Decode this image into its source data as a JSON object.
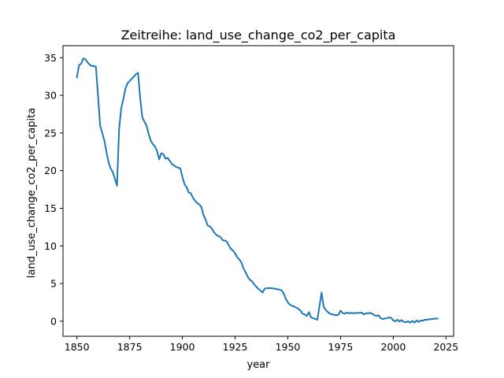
{
  "chart_data": {
    "type": "line",
    "title": "Zeitreihe: land_use_change_co2_per_capita",
    "xlabel": "year",
    "ylabel": "land_use_change_co2_per_capita",
    "xlim": [
      1843.4,
      2028.6
    ],
    "ylim": [
      -2.0,
      36.6
    ],
    "grid": false,
    "legend": "none",
    "line_color": "#1f77b4",
    "x_ticks": [
      1850,
      1875,
      1900,
      1925,
      1950,
      1975,
      2000,
      2025
    ],
    "y_ticks": [
      0,
      5,
      10,
      15,
      20,
      25,
      30,
      35
    ],
    "series": [
      {
        "x": [
          1850,
          1851,
          1852,
          1853,
          1854,
          1855,
          1856,
          1857,
          1858,
          1859,
          1860,
          1861,
          1862,
          1863,
          1864,
          1865,
          1866,
          1867,
          1868,
          1869,
          1870,
          1871,
          1872,
          1873,
          1874,
          1875,
          1876,
          1877,
          1878,
          1879,
          1880,
          1881,
          1882,
          1883,
          1884,
          1885,
          1886,
          1887,
          1888,
          1889,
          1890,
          1891,
          1892,
          1893,
          1894,
          1895,
          1896,
          1897,
          1898,
          1899,
          1900,
          1901,
          1902,
          1903,
          1904,
          1905,
          1906,
          1907,
          1908,
          1909,
          1910,
          1911,
          1912,
          1913,
          1914,
          1915,
          1916,
          1917,
          1918,
          1919,
          1920,
          1921,
          1922,
          1923,
          1924,
          1925,
          1926,
          1927,
          1928,
          1929,
          1930,
          1931,
          1932,
          1933,
          1934,
          1935,
          1936,
          1937,
          1938,
          1939,
          1940,
          1941,
          1942,
          1943,
          1944,
          1945,
          1946,
          1947,
          1948,
          1949,
          1950,
          1951,
          1952,
          1953,
          1954,
          1955,
          1956,
          1957,
          1958,
          1959,
          1960,
          1961,
          1962,
          1963,
          1964,
          1965,
          1966,
          1967,
          1968,
          1969,
          1970,
          1971,
          1972,
          1973,
          1974,
          1975,
          1976,
          1977,
          1978,
          1979,
          1980,
          1981,
          1982,
          1983,
          1984,
          1985,
          1986,
          1987,
          1988,
          1989,
          1990,
          1991,
          1992,
          1993,
          1994,
          1995,
          1996,
          1997,
          1998,
          1999,
          2000,
          2001,
          2002,
          2003,
          2004,
          2005,
          2006,
          2007,
          2008,
          2009,
          2010,
          2011,
          2012,
          2013,
          2014,
          2015,
          2016,
          2017,
          2018,
          2019,
          2020,
          2021
        ],
        "values": [
          32.4,
          34.0,
          34.2,
          34.9,
          34.8,
          34.4,
          34.1,
          33.9,
          33.9,
          33.8,
          30.0,
          26.0,
          25.0,
          24.0,
          22.5,
          21.1,
          20.3,
          19.8,
          18.9,
          18.0,
          25.5,
          28.3,
          29.5,
          30.9,
          31.6,
          31.9,
          32.2,
          32.5,
          32.8,
          33.0,
          29.6,
          27.1,
          26.5,
          26.0,
          24.9,
          24.0,
          23.5,
          23.2,
          22.6,
          21.5,
          22.3,
          22.2,
          21.6,
          21.7,
          21.3,
          20.9,
          20.7,
          20.5,
          20.4,
          20.3,
          19.2,
          18.2,
          17.8,
          17.1,
          17.0,
          16.4,
          16.0,
          15.7,
          15.5,
          15.2,
          14.1,
          13.5,
          12.7,
          12.6,
          12.3,
          11.8,
          11.5,
          11.3,
          11.2,
          10.8,
          10.7,
          10.6,
          10.1,
          9.6,
          9.4,
          9.0,
          8.5,
          8.2,
          7.8,
          7.0,
          6.5,
          5.9,
          5.5,
          5.3,
          4.9,
          4.6,
          4.3,
          4.1,
          3.8,
          4.3,
          4.4,
          4.4,
          4.4,
          4.35,
          4.3,
          4.25,
          4.2,
          4.1,
          3.7,
          3.0,
          2.5,
          2.2,
          2.05,
          1.95,
          1.8,
          1.65,
          1.4,
          1.0,
          0.9,
          0.7,
          1.2,
          0.5,
          0.4,
          0.3,
          0.2,
          2.0,
          3.8,
          1.9,
          1.5,
          1.2,
          1.0,
          0.9,
          0.85,
          0.8,
          0.85,
          1.4,
          1.1,
          1.0,
          1.15,
          1.05,
          1.1,
          1.05,
          1.1,
          1.1,
          1.1,
          1.15,
          0.9,
          1.05,
          1.05,
          1.1,
          1.0,
          0.8,
          0.7,
          0.8,
          0.4,
          0.3,
          0.35,
          0.4,
          0.5,
          0.45,
          0.1,
          0.0,
          0.2,
          -0.05,
          0.15,
          -0.1,
          -0.15,
          0.0,
          -0.2,
          0.05,
          -0.2,
          0.1,
          -0.1,
          0.1,
          0.05,
          0.2,
          0.2,
          0.25,
          0.3,
          0.3,
          0.35,
          0.35
        ]
      }
    ]
  }
}
